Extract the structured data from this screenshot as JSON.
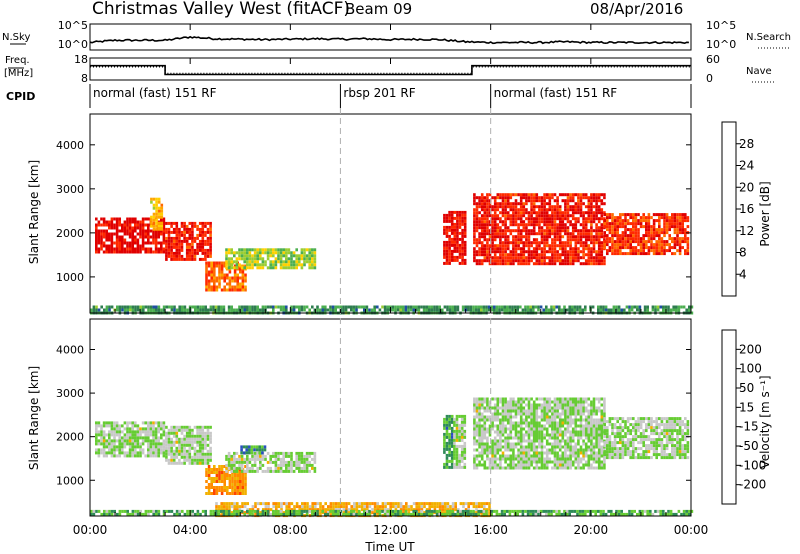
{
  "header": {
    "station": "Christmas Valley West (fitACF)",
    "beam": "Beam 09",
    "date": "08/Apr/2016"
  },
  "chart_data": [
    {
      "type": "line",
      "panel": "noise",
      "left_label": "N.Sky",
      "right_label": "N.Search",
      "left_ticks": [
        "10^5",
        "10^0"
      ],
      "right_ticks": [
        "10^5",
        "10^0"
      ],
      "series": [
        {
          "name": "N.Sky",
          "style": "solid"
        },
        {
          "name": "N.Search",
          "style": "dotted"
        }
      ],
      "x": [
        0,
        1,
        2,
        3,
        4,
        5,
        6,
        7,
        8,
        9,
        10,
        11,
        12,
        13,
        14,
        15,
        16,
        17,
        18,
        19,
        20,
        21,
        22,
        23,
        24
      ],
      "y_level": [
        0.25,
        0.35,
        0.35,
        0.35,
        0.5,
        0.42,
        0.4,
        0.38,
        0.4,
        0.42,
        0.4,
        0.42,
        0.38,
        0.4,
        0.38,
        0.28,
        0.25,
        0.25,
        0.25,
        0.28,
        0.25,
        0.25,
        0.25,
        0.25,
        0.25
      ]
    },
    {
      "type": "line",
      "panel": "frequency",
      "left_label": "Freq.",
      "left_unit": "[MHz]",
      "right_label": "Nave",
      "left_ticks": [
        18,
        8
      ],
      "right_ticks": [
        60,
        0
      ],
      "freq_x": [
        0,
        3,
        3,
        15.25,
        15.25,
        24
      ],
      "freq_y": [
        14.5,
        14.5,
        10.5,
        10.5,
        14.5,
        14.5
      ],
      "nave_x": [
        0,
        3,
        3,
        15.25,
        15.25,
        24
      ],
      "nave_y": [
        36,
        36,
        18,
        18,
        36,
        36
      ]
    },
    {
      "type": "table",
      "panel": "cpid",
      "label": "CPID",
      "segments": [
        {
          "start": 0,
          "end": 10,
          "text": "normal (fast) 151 RF"
        },
        {
          "start": 10,
          "end": 16,
          "text": "rbsp 201 RF"
        },
        {
          "start": 16,
          "end": 24,
          "text": "normal (fast) 151 RF"
        }
      ]
    },
    {
      "type": "heatmap",
      "panel": "power",
      "ylabel": "Slant Range [km]",
      "ylim": [
        180,
        4700
      ],
      "yticks": [
        1000,
        2000,
        3000,
        4000
      ],
      "colorbar": {
        "label": "Power [dB]",
        "ticks": [
          4,
          8,
          12,
          16,
          20,
          24,
          28
        ],
        "colors": [
          "#0000ff",
          "#1f4fa0",
          "#2e7d4f",
          "#4caf50",
          "#9acd32",
          "#ffd000",
          "#ffa500",
          "#ff6a00",
          "#ff2a00",
          "#e00000"
        ]
      },
      "regions": [
        {
          "x": [
            0.2,
            2.9
          ],
          "y": [
            1550,
            2350
          ],
          "level": 0.95
        },
        {
          "x": [
            2.4,
            2.9
          ],
          "y": [
            2100,
            2800
          ],
          "level": 0.6
        },
        {
          "x": [
            3.0,
            4.8
          ],
          "y": [
            1400,
            2250
          ],
          "level": 0.9
        },
        {
          "x": [
            4.6,
            6.2
          ],
          "y": [
            700,
            1350
          ],
          "level": 0.75
        },
        {
          "x": [
            5.4,
            9.0
          ],
          "y": [
            1200,
            1650
          ],
          "level": 0.45
        },
        {
          "x": [
            14.1,
            15.0
          ],
          "y": [
            1300,
            2500
          ],
          "level": 0.95
        },
        {
          "x": [
            15.3,
            20.5
          ],
          "y": [
            1300,
            2900
          ],
          "level": 0.9
        },
        {
          "x": [
            20.5,
            23.9
          ],
          "y": [
            1550,
            2450
          ],
          "level": 0.85
        },
        {
          "x": [
            0.0,
            24.0
          ],
          "y": [
            200,
            350
          ],
          "level": 0.3
        }
      ]
    },
    {
      "type": "heatmap",
      "panel": "velocity",
      "ylabel": "Slant Range [km]",
      "ylim": [
        180,
        4700
      ],
      "yticks": [
        1000,
        2000,
        3000,
        4000
      ],
      "xlabel": "Time UT",
      "xticks": [
        "00:00",
        "04:00",
        "08:00",
        "12:00",
        "16:00",
        "20:00",
        "00:00"
      ],
      "colorbar": {
        "label": "Velocity [m s⁻¹]",
        "ticks": [
          200,
          100,
          50,
          15,
          -15,
          -50,
          -100,
          -200
        ],
        "colors": [
          "#1a1aff",
          "#2950c0",
          "#2e8b57",
          "#66cc33",
          "#c8c8c8",
          "#f2b000",
          "#ff8c00",
          "#ff4500",
          "#e00000"
        ]
      },
      "regions": [
        {
          "x": [
            0.2,
            2.9
          ],
          "y": [
            1550,
            2350
          ],
          "level": 0.45
        },
        {
          "x": [
            3.0,
            4.8
          ],
          "y": [
            1400,
            2250
          ],
          "level": 0.45
        },
        {
          "x": [
            4.6,
            6.2
          ],
          "y": [
            700,
            1350
          ],
          "level": 0.7
        },
        {
          "x": [
            5.4,
            9.0
          ],
          "y": [
            1200,
            1650
          ],
          "level": 0.45
        },
        {
          "x": [
            6.0,
            7.0
          ],
          "y": [
            1600,
            1800
          ],
          "level": 0.3
        },
        {
          "x": [
            14.1,
            14.5
          ],
          "y": [
            1300,
            2500
          ],
          "level": 0.3
        },
        {
          "x": [
            14.5,
            15.0
          ],
          "y": [
            1300,
            2500
          ],
          "level": 0.45
        },
        {
          "x": [
            15.3,
            20.5
          ],
          "y": [
            1300,
            2900
          ],
          "level": 0.45
        },
        {
          "x": [
            20.5,
            23.9
          ],
          "y": [
            1550,
            2450
          ],
          "level": 0.45
        },
        {
          "x": [
            5.0,
            16.0
          ],
          "y": [
            200,
            500
          ],
          "level": 0.62
        },
        {
          "x": [
            0.0,
            24.0
          ],
          "y": [
            200,
            320
          ],
          "level": 0.35
        }
      ]
    }
  ]
}
